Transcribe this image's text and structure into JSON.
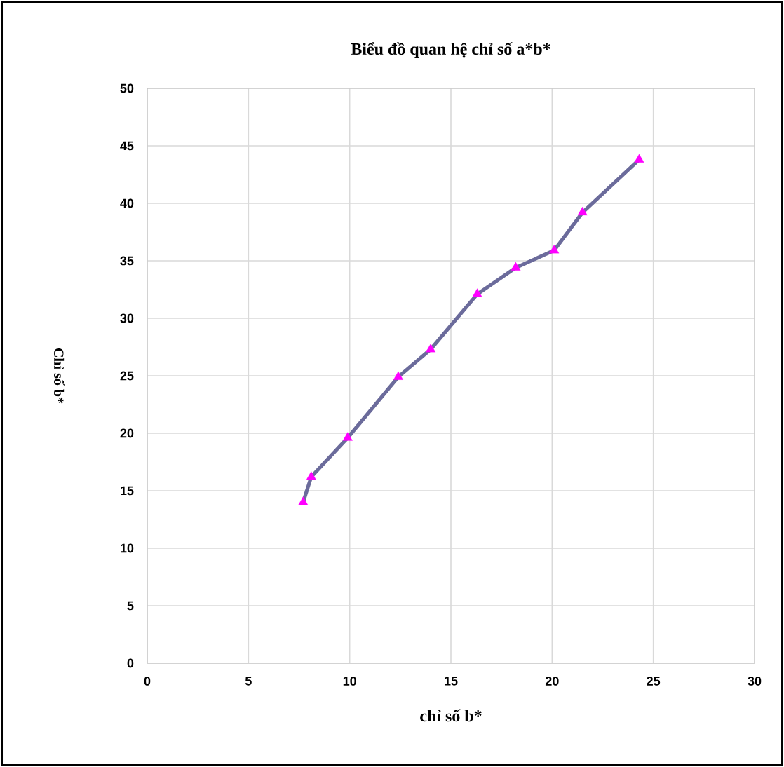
{
  "chart_data": {
    "type": "line",
    "title": "Biểu đồ quan hệ chỉ số a*b*",
    "xlabel": "chỉ số b*",
    "ylabel": "Chỉ số b*",
    "xlim": [
      0,
      30
    ],
    "xticks": [
      0,
      5,
      10,
      15,
      20,
      25,
      30
    ],
    "ylim": [
      0,
      50
    ],
    "yticks": [
      0,
      5,
      10,
      15,
      20,
      25,
      30,
      35,
      40,
      45,
      50
    ],
    "grid": true,
    "marker": "triangle",
    "line_style": "solid",
    "series": [
      {
        "color": "#6b6b9b",
        "x": [
          7.7,
          8.1,
          9.9,
          12.4,
          14.0,
          16.3,
          18.2,
          20.1,
          21.5,
          24.3
        ],
        "values": [
          14.0,
          16.2,
          19.6,
          24.9,
          27.3,
          32.1,
          34.4,
          35.9,
          39.2,
          43.8
        ]
      }
    ]
  }
}
